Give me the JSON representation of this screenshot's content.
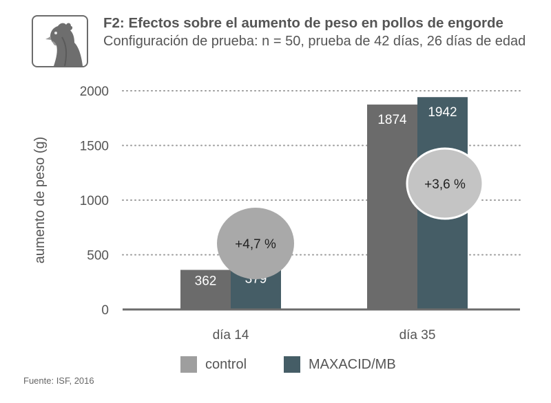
{
  "header": {
    "title": "F2: Efectos sobre el aumento de peso en pollos de engorde",
    "subtitle": "Configuración de prueba: n = 50, prueba de 42 días, 26 días de edad",
    "icon": "chicken-icon"
  },
  "chart_data": {
    "type": "bar",
    "title": "F2: Efectos sobre el aumento de peso en pollos de engorde",
    "ylabel": "aumento de peso (g)",
    "xlabel": "",
    "ylim": [
      0,
      2000
    ],
    "yticks": [
      0,
      500,
      1000,
      1500,
      2000
    ],
    "grid": true,
    "categories": [
      "día 14",
      "día 35"
    ],
    "series": [
      {
        "name": "control",
        "values": [
          362,
          1874
        ],
        "color": "#6b6b6b"
      },
      {
        "name": "MAXACID/MB",
        "values": [
          379,
          1942
        ],
        "color": "#455d66"
      }
    ],
    "annotations": [
      "+4,7 %",
      "+3,6 %"
    ],
    "legend_position": "bottom"
  },
  "legend": {
    "items": [
      {
        "label": "control",
        "color": "#9e9e9e"
      },
      {
        "label": "MAXACID/MB",
        "color": "#455d66"
      }
    ]
  },
  "footer": {
    "source": "Fuente: ISF, 2016"
  }
}
